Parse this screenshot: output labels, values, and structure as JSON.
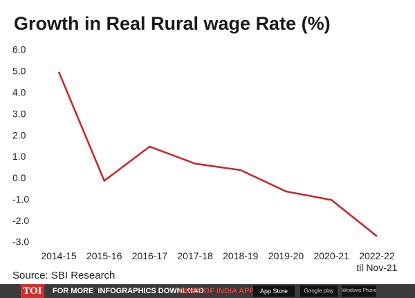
{
  "chart_data": {
    "type": "line",
    "title": "Growth in Real Rural wage Rate (%)",
    "categories": [
      "2014-15",
      "2015-16",
      "2016-17",
      "2017-18",
      "2018-19",
      "2019-20",
      "2020-21",
      "2022-22\ntil Nov-21"
    ],
    "values": [
      5.0,
      -0.1,
      1.5,
      0.7,
      0.4,
      -0.6,
      -1.0,
      -2.7
    ],
    "color": "#c62a2a",
    "ylim": [
      -3.0,
      6.0
    ],
    "yticks": [
      {
        "value": 6,
        "label": "6.0"
      },
      {
        "value": 5,
        "label": "5.0"
      },
      {
        "value": 4,
        "label": "4.0"
      },
      {
        "value": 3,
        "label": "3.0"
      },
      {
        "value": 2,
        "label": "2.0"
      },
      {
        "value": 1,
        "label": "1.0"
      },
      {
        "value": 0,
        "label": "0.0"
      },
      {
        "value": -1,
        "label": "-1.0"
      },
      {
        "value": -2,
        "label": "-2.0"
      },
      {
        "value": -3,
        "label": "-3.0"
      }
    ],
    "grid": false,
    "source": "Source: SBI Research"
  },
  "footer": {
    "logo": "TOI",
    "text": "FOR MORE  INFOGRAPHICS DOWNLOAD",
    "app": "TIMES OF INDIA APP",
    "badges": [
      "App Store",
      "Google play",
      "Windows Phone"
    ]
  }
}
